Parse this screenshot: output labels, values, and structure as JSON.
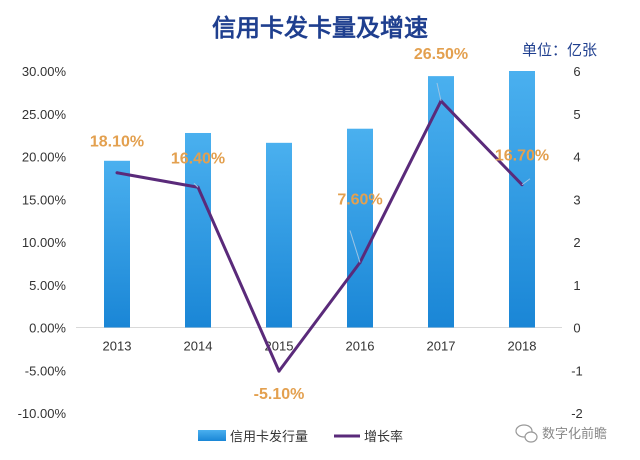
{
  "chart_data": {
    "type": "bar+line",
    "title": "信用卡发卡量及增速",
    "unit_label": "单位：亿张",
    "categories": [
      "2013",
      "2014",
      "2015",
      "2016",
      "2017",
      "2018"
    ],
    "series": [
      {
        "name": "信用卡发行量",
        "type": "bar",
        "axis": "right",
        "values": [
          3.9,
          4.55,
          4.32,
          4.65,
          5.88,
          6.0
        ]
      },
      {
        "name": "增长率",
        "type": "line",
        "axis": "left",
        "values": [
          18.1,
          16.4,
          -5.1,
          7.6,
          26.5,
          16.7
        ],
        "labels": [
          "18.10%",
          "16.40%",
          "-5.10%",
          "7.60%",
          "26.50%",
          "16.70%"
        ]
      }
    ],
    "left_axis": {
      "ylim": [
        -10,
        30
      ],
      "ticks": [
        "-10.00%",
        "-5.00%",
        "0.00%",
        "5.00%",
        "10.00%",
        "15.00%",
        "20.00%",
        "25.00%",
        "30.00%"
      ]
    },
    "right_axis": {
      "ylim": [
        -2,
        6
      ],
      "ticks": [
        "-2",
        "-1",
        "0",
        "1",
        "2",
        "3",
        "4",
        "5",
        "6"
      ]
    },
    "grid": false,
    "legend_position": "bottom",
    "colors": {
      "bar_top": "#4ab0ef",
      "bar_bottom": "#1a86d6",
      "line": "#5a2a7a",
      "label": "#e3a04f",
      "title": "#1f3f8f"
    }
  },
  "watermark": {
    "text": "数字化前瞻",
    "icon": "wechat-icon"
  }
}
